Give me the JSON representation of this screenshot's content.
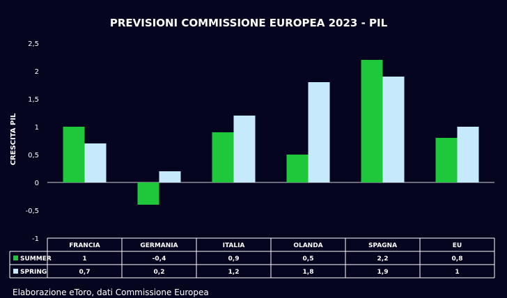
{
  "chart_data": {
    "type": "bar",
    "title": "PREVISIONI COMMISSIONE EUROPEA 2023 - PIL",
    "ylabel": "CRESCITA PIL",
    "xlabel": "",
    "categories": [
      "FRANCIA",
      "GERMANIA",
      "ITALIA",
      "OLANDA",
      "SPAGNA",
      "EU"
    ],
    "series": [
      {
        "name": "SUMMER",
        "color": "#1ec83a",
        "values": [
          1,
          -0.4,
          0.9,
          0.5,
          2.2,
          0.8
        ],
        "labels": [
          "1",
          "-0,4",
          "0,9",
          "0,5",
          "2,2",
          "0,8"
        ]
      },
      {
        "name": "SPRING",
        "color": "#c6e9fb",
        "values": [
          0.7,
          0.2,
          1.2,
          1.8,
          1.9,
          1
        ],
        "labels": [
          "0,7",
          "0,2",
          "1,2",
          "1,8",
          "1,9",
          "1"
        ]
      }
    ],
    "ylim": [
      -1,
      2.5
    ],
    "yticks": [
      -1,
      -0.5,
      0,
      0.5,
      1,
      1.5,
      2,
      2.5
    ],
    "ytick_labels": [
      "-1",
      "-0,5",
      "0",
      "0,5",
      "1",
      "1,5",
      "2",
      "2,5"
    ],
    "grid": false,
    "legend": "data-table"
  },
  "source_note": "Elaborazione eToro, dati Commissione Europea",
  "colors": {
    "background": "#050520",
    "text": "#ffffff",
    "table_border": "#ffffff"
  }
}
